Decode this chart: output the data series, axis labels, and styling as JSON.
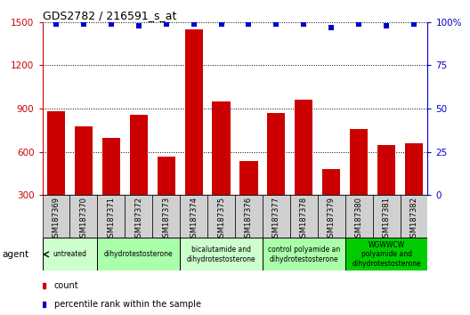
{
  "title": "GDS2782 / 216591_s_at",
  "samples": [
    "GSM187369",
    "GSM187370",
    "GSM187371",
    "GSM187372",
    "GSM187373",
    "GSM187374",
    "GSM187375",
    "GSM187376",
    "GSM187377",
    "GSM187378",
    "GSM187379",
    "GSM187380",
    "GSM187381",
    "GSM187382"
  ],
  "counts": [
    880,
    780,
    700,
    860,
    570,
    1450,
    950,
    540,
    870,
    960,
    480,
    760,
    650,
    660
  ],
  "percentiles": [
    99,
    99,
    99,
    98,
    99,
    99,
    99,
    99,
    99,
    99,
    97,
    99,
    98,
    99
  ],
  "bar_color": "#cc0000",
  "dot_color": "#0000cc",
  "ylim_left": [
    300,
    1500
  ],
  "ylim_right": [
    0,
    100
  ],
  "yticks_left": [
    300,
    600,
    900,
    1200,
    1500
  ],
  "yticks_right": [
    0,
    25,
    50,
    75,
    100
  ],
  "groups": [
    {
      "label": "untreated",
      "indices": [
        0,
        1
      ],
      "color": "#ccffcc",
      "ncols": 2
    },
    {
      "label": "dihydrotestosterone",
      "indices": [
        2,
        3,
        4
      ],
      "color": "#aaffaa",
      "ncols": 3
    },
    {
      "label": "bicalutamide and\ndihydrotestosterone",
      "indices": [
        5,
        6,
        7
      ],
      "color": "#ccffcc",
      "ncols": 3
    },
    {
      "label": "control polyamide an\ndihydrotestosterone",
      "indices": [
        8,
        9,
        10
      ],
      "color": "#aaffaa",
      "ncols": 3
    },
    {
      "label": "WGWWCW\npolyamide and\ndihydrotestosterone",
      "indices": [
        11,
        12,
        13
      ],
      "color": "#00cc00",
      "ncols": 3
    }
  ],
  "agent_label": "agent",
  "legend_count_label": "count",
  "legend_pct_label": "percentile rank within the sample",
  "xticklabel_bg": "#d0d0d0",
  "spine_color": "#000000"
}
